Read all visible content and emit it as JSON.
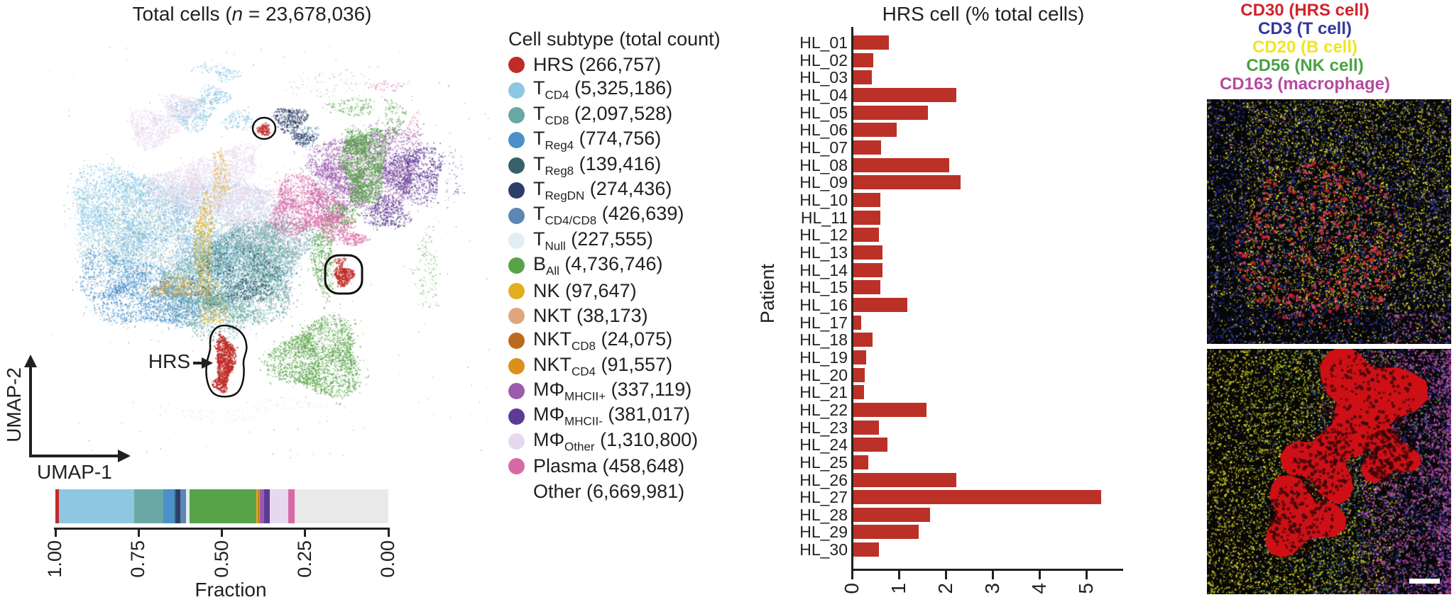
{
  "umap": {
    "title_prefix": "Total cells (",
    "title_n": "n",
    "title_suffix": " = 23,678,036)",
    "xlabel": "UMAP-1",
    "ylabel": "UMAP-2",
    "hrs_label": "HRS"
  },
  "legend": {
    "title": "Cell subtype (total count)",
    "items": [
      {
        "name": "HRS",
        "base": "HRS",
        "sub": "",
        "count": "(266,757)",
        "value": 266757,
        "color": "#bf2c28"
      },
      {
        "name": "T_CD4",
        "base": "T",
        "sub": "CD4",
        "count": "(5,325,186)",
        "value": 5325186,
        "color": "#8ec7e2"
      },
      {
        "name": "T_CD8",
        "base": "T",
        "sub": "CD8",
        "count": "(2,097,528)",
        "value": 2097528,
        "color": "#69a8a4"
      },
      {
        "name": "T_Reg4",
        "base": "T",
        "sub": "Reg4",
        "count": "(774,756)",
        "value": 774756,
        "color": "#4b90c8"
      },
      {
        "name": "T_Reg8",
        "base": "T",
        "sub": "Reg8",
        "count": "(139,416)",
        "value": 139416,
        "color": "#38626b"
      },
      {
        "name": "T_RegDN",
        "base": "T",
        "sub": "RegDN",
        "count": "(274,436)",
        "value": 274436,
        "color": "#2c3e68"
      },
      {
        "name": "T_CD4/CD8",
        "base": "T",
        "sub": "CD4/CD8",
        "count": "(426,639)",
        "value": 426639,
        "color": "#5d87b2"
      },
      {
        "name": "T_Null",
        "base": "T",
        "sub": "Null",
        "count": "(227,555)",
        "value": 227555,
        "color": "#e2eef5"
      },
      {
        "name": "B_All",
        "base": "B",
        "sub": "All",
        "count": "(4,736,746)",
        "value": 4736746,
        "color": "#57a348"
      },
      {
        "name": "NK",
        "base": "NK",
        "sub": "",
        "count": "(97,647)",
        "value": 97647,
        "color": "#e3ad1d"
      },
      {
        "name": "NKT",
        "base": "NKT",
        "sub": "",
        "count": "(38,173)",
        "value": 38173,
        "color": "#dfa67d"
      },
      {
        "name": "NKT_CD8",
        "base": "NKT",
        "sub": "CD8",
        "count": "(24,075)",
        "value": 24075,
        "color": "#bc6b1c"
      },
      {
        "name": "NKT_CD4",
        "base": "NKT",
        "sub": "CD4",
        "count": "(91,557)",
        "value": 91557,
        "color": "#dc8f1a"
      },
      {
        "name": "MPhi_MHCII+",
        "base": "MΦ",
        "sub": "MHCII+",
        "count": "(337,119)",
        "value": 337119,
        "color": "#9a5cac"
      },
      {
        "name": "MPhi_MHCII-",
        "base": "MΦ",
        "sub": "MHCII-",
        "count": "(381,017)",
        "value": 381017,
        "color": "#5c3b94"
      },
      {
        "name": "MPhi_Other",
        "base": "MΦ",
        "sub": "Other",
        "count": "(1,310,800)",
        "value": 1310800,
        "color": "#e6d9ee"
      },
      {
        "name": "Plasma",
        "base": "Plasma",
        "sub": "",
        "count": "(458,648)",
        "value": 458648,
        "color": "#d76aa6"
      },
      {
        "name": "Other",
        "base": "Other",
        "sub": "",
        "count": "(6,669,981)",
        "value": 6669981,
        "color": null,
        "bar_color": "#e9e9e9"
      }
    ]
  },
  "fraction_axis": {
    "label": "Fraction",
    "ticks": [
      "1.00",
      "0.75",
      "0.50",
      "0.25",
      "0.00"
    ]
  },
  "barchart": {
    "title": "HRS cell (% total cells)",
    "ylabel": "Patient",
    "bar_color": "#bb3127",
    "x_ticks": [
      "0",
      "1",
      "2",
      "3",
      "4",
      "5"
    ],
    "xlim": [
      0,
      5.75
    ],
    "patients": [
      "HL_01",
      "HL_02",
      "HL_03",
      "HL_04",
      "HL_05",
      "HL_06",
      "HL_07",
      "HL_08",
      "HL_09",
      "HL_10",
      "HL_11",
      "HL_12",
      "HL_13",
      "HL_14",
      "HL_15",
      "HL_16",
      "HL_17",
      "HL_18",
      "HL_19",
      "HL_20",
      "HL_21",
      "HL_22",
      "HL_23",
      "HL_24",
      "HL_25",
      "HL_26",
      "HL_27",
      "HL_28",
      "HL_29",
      "HL_30"
    ],
    "values": [
      0.76,
      0.43,
      0.4,
      2.2,
      1.6,
      0.93,
      0.6,
      2.05,
      2.3,
      0.58,
      0.58,
      0.55,
      0.63,
      0.63,
      0.58,
      1.16,
      0.17,
      0.42,
      0.28,
      0.25,
      0.24,
      1.57,
      0.56,
      0.73,
      0.32,
      2.2,
      5.3,
      1.65,
      1.4,
      0.55
    ]
  },
  "markers": [
    {
      "label": "CD30 (HRS cell)",
      "color": "#d2232a"
    },
    {
      "label": "CD3 (T cell)",
      "color": "#32389b"
    },
    {
      "label": "CD20 (B cell)",
      "color": "#f2e522"
    },
    {
      "label": "CD56 (NK cell)",
      "color": "#4aa147"
    },
    {
      "label": "CD163 (macrophage)",
      "color": "#b54a9f"
    }
  ],
  "chart_data": [
    {
      "type": "scatter",
      "title": "Total cells (n = 23,678,036)",
      "xlabel": "UMAP-1",
      "ylabel": "UMAP-2",
      "annotation": "HRS (circled clusters)",
      "total_cells": 23678036,
      "clusters": [
        {
          "name": "HRS",
          "count": 266757
        },
        {
          "name": "T_CD4",
          "count": 5325186
        },
        {
          "name": "T_CD8",
          "count": 2097528
        },
        {
          "name": "T_Reg4",
          "count": 774756
        },
        {
          "name": "T_Reg8",
          "count": 139416
        },
        {
          "name": "T_RegDN",
          "count": 274436
        },
        {
          "name": "T_CD4/CD8",
          "count": 426639
        },
        {
          "name": "T_Null",
          "count": 227555
        },
        {
          "name": "B_All",
          "count": 4736746
        },
        {
          "name": "NK",
          "count": 97647
        },
        {
          "name": "NKT",
          "count": 38173
        },
        {
          "name": "NKT_CD8",
          "count": 24075
        },
        {
          "name": "NKT_CD4",
          "count": 91557
        },
        {
          "name": "MPhi_MHCII+",
          "count": 337119
        },
        {
          "name": "MPhi_MHCII-",
          "count": 381017
        },
        {
          "name": "MPhi_Other",
          "count": 1310800
        },
        {
          "name": "Plasma",
          "count": 458648
        },
        {
          "name": "Other",
          "count": 6669981
        }
      ]
    },
    {
      "type": "bar",
      "subtype": "horizontal-stacked-fraction",
      "xlabel": "Fraction",
      "axis_ticks": [
        1.0,
        0.75,
        0.5,
        0.25,
        0.0
      ],
      "segments": [
        {
          "name": "HRS",
          "fraction": 0.0113
        },
        {
          "name": "T_CD4",
          "fraction": 0.2249
        },
        {
          "name": "T_CD8",
          "fraction": 0.0886
        },
        {
          "name": "T_Reg4",
          "fraction": 0.0327
        },
        {
          "name": "T_Reg8",
          "fraction": 0.0059
        },
        {
          "name": "T_RegDN",
          "fraction": 0.0116
        },
        {
          "name": "T_CD4/CD8",
          "fraction": 0.018
        },
        {
          "name": "T_Null",
          "fraction": 0.0096
        },
        {
          "name": "B_All",
          "fraction": 0.2001
        },
        {
          "name": "NK",
          "fraction": 0.0041
        },
        {
          "name": "NKT",
          "fraction": 0.0016
        },
        {
          "name": "NKT_CD8",
          "fraction": 0.001
        },
        {
          "name": "NKT_CD4",
          "fraction": 0.0039
        },
        {
          "name": "MPhi_MHCII+",
          "fraction": 0.0142
        },
        {
          "name": "MPhi_MHCII-",
          "fraction": 0.0161
        },
        {
          "name": "MPhi_Other",
          "fraction": 0.0554
        },
        {
          "name": "Plasma",
          "fraction": 0.0194
        },
        {
          "name": "Other",
          "fraction": 0.2817
        }
      ]
    },
    {
      "type": "bar",
      "title": "HRS cell (% total cells)",
      "ylabel": "Patient",
      "orientation": "horizontal",
      "xlim": [
        0,
        5.75
      ],
      "x_ticks": [
        0,
        1,
        2,
        3,
        4,
        5
      ],
      "categories": [
        "HL_01",
        "HL_02",
        "HL_03",
        "HL_04",
        "HL_05",
        "HL_06",
        "HL_07",
        "HL_08",
        "HL_09",
        "HL_10",
        "HL_11",
        "HL_12",
        "HL_13",
        "HL_14",
        "HL_15",
        "HL_16",
        "HL_17",
        "HL_18",
        "HL_19",
        "HL_20",
        "HL_21",
        "HL_22",
        "HL_23",
        "HL_24",
        "HL_25",
        "HL_26",
        "HL_27",
        "HL_28",
        "HL_29",
        "HL_30"
      ],
      "values": [
        0.76,
        0.43,
        0.4,
        2.2,
        1.6,
        0.93,
        0.6,
        2.05,
        2.3,
        0.58,
        0.58,
        0.55,
        0.63,
        0.63,
        0.58,
        1.16,
        0.17,
        0.42,
        0.28,
        0.25,
        0.24,
        1.57,
        0.56,
        0.73,
        0.32,
        2.2,
        5.3,
        1.65,
        1.4,
        0.55
      ]
    }
  ]
}
